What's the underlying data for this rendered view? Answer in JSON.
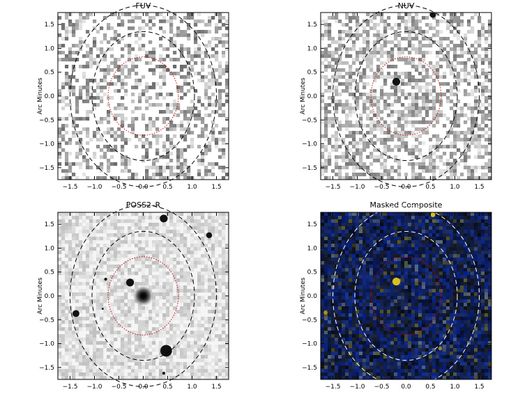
{
  "figure": {
    "panels": [
      {
        "id": "fuv",
        "title": "FUV",
        "ylabel": "Arc Minutes",
        "style": "sparse-grayscale",
        "ellipse_colors": [
          "#cc0000",
          "#000000",
          "#000000"
        ]
      },
      {
        "id": "nuv",
        "title": "NUV",
        "ylabel": "Arc Minutes",
        "style": "dense-grayscale",
        "ellipse_colors": [
          "#cc0000",
          "#000000",
          "#000000"
        ]
      },
      {
        "id": "poss2r",
        "title": "POSS2–R",
        "ylabel": "Arc Minutes",
        "style": "optical",
        "ellipse_colors": [
          "#cc0000",
          "#000000",
          "#000000"
        ]
      },
      {
        "id": "composite",
        "title": "Masked Composite",
        "ylabel": "Arc Minutes",
        "style": "color-composite",
        "ellipse_colors": [
          "#cc0000",
          "#ffffff",
          "#ffffff"
        ]
      }
    ],
    "xaxis": {
      "range": [
        -1.75,
        1.75
      ],
      "ticks": [
        -1.5,
        -1.0,
        -0.5,
        0.0,
        0.5,
        1.0,
        1.5
      ],
      "tick_labels": [
        "−1.5",
        "−1.0",
        "−0.5",
        "0.0",
        "0.5",
        "1.0",
        "1.5"
      ]
    },
    "yaxis": {
      "range": [
        -1.75,
        1.75
      ],
      "ticks": [
        -1.5,
        -1.0,
        -0.5,
        0.0,
        0.5,
        1.0,
        1.5
      ],
      "tick_labels": [
        "−1.5",
        "−1.0",
        "−0.5",
        "0.0",
        "0.5",
        "1.0",
        "1.5"
      ]
    },
    "ellipses": [
      {
        "type": "inner-dotted",
        "rx": 0.72,
        "ry": 0.82,
        "center": [
          0.0,
          0.0
        ]
      },
      {
        "type": "middle-dashed",
        "rx": 1.05,
        "ry": 1.35,
        "center": [
          0.0,
          0.0
        ]
      },
      {
        "type": "outer-dashed",
        "rx": 1.5,
        "ry": 1.9,
        "center": [
          0.0,
          0.0
        ]
      }
    ],
    "sources": {
      "poss2r": [
        {
          "x": 0.0,
          "y": 0.0,
          "r": 0.22,
          "kind": "galaxy"
        },
        {
          "x": 0.42,
          "y": 1.62,
          "r": 0.08
        },
        {
          "x": 1.35,
          "y": 1.27,
          "r": 0.06
        },
        {
          "x": -0.27,
          "y": 0.28,
          "r": 0.08
        },
        {
          "x": -1.38,
          "y": -0.37,
          "r": 0.07
        },
        {
          "x": 0.47,
          "y": -1.15,
          "r": 0.12
        },
        {
          "x": 0.42,
          "y": -1.62,
          "r": 0.03
        },
        {
          "x": -0.77,
          "y": 0.35,
          "r": 0.03
        },
        {
          "x": -0.83,
          "y": -0.27,
          "r": 0.02
        }
      ],
      "nuv": [
        {
          "x": -0.2,
          "y": 0.3,
          "r": 0.08
        },
        {
          "x": 0.55,
          "y": 1.7,
          "r": 0.06
        }
      ],
      "composite": [
        {
          "x": -0.2,
          "y": 0.3,
          "r": 0.08,
          "color": "#d8c020"
        },
        {
          "x": 0.55,
          "y": 1.7,
          "r": 0.05,
          "color": "#d8c020"
        },
        {
          "x": -1.65,
          "y": -0.35,
          "r": 0.04,
          "color": "#b09020"
        },
        {
          "x": 0.7,
          "y": -1.1,
          "r": 0.04,
          "color": "#a08020"
        }
      ]
    }
  }
}
